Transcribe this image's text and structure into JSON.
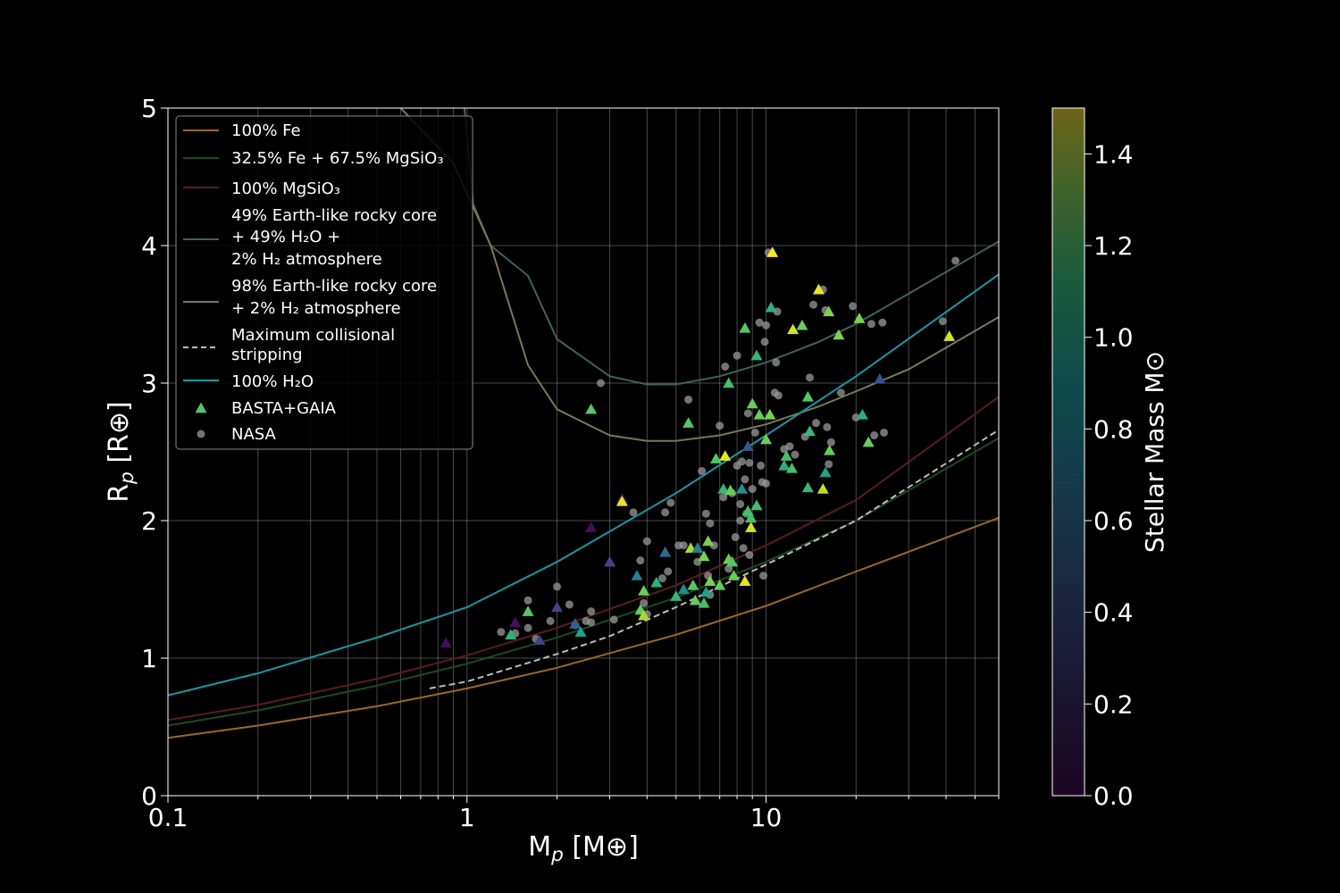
{
  "chart_data": {
    "type": "scatter",
    "xlabel": "M_p [M⊕]",
    "ylabel": "R_p [R⊕]",
    "xscale": "log",
    "xlim": [
      0.1,
      60
    ],
    "ylim": [
      0,
      5
    ],
    "x_ticks": [
      {
        "value": 0.1,
        "label": "0.1"
      },
      {
        "value": 1,
        "label": "1"
      },
      {
        "value": 10,
        "label": "10"
      }
    ],
    "y_ticks": [
      0,
      1,
      2,
      3,
      4,
      5
    ],
    "grid": true,
    "legend_position": "upper-left",
    "colorbar": {
      "label": "Stellar Mass M⊙",
      "range": [
        0.0,
        1.5
      ],
      "ticks": [
        "0.0",
        "0.2",
        "0.4",
        "0.6",
        "0.8",
        "1.0",
        "1.2",
        "1.4"
      ],
      "tick_values": [
        0.0,
        0.2,
        0.4,
        0.6,
        0.8,
        1.0,
        1.2,
        1.4
      ],
      "colormap": "viridis"
    },
    "lines": [
      {
        "name": "100% Fe",
        "color": "#9a6b1f",
        "dash": false,
        "points": [
          [
            0.1,
            0.42
          ],
          [
            0.2,
            0.51
          ],
          [
            0.5,
            0.65
          ],
          [
            1,
            0.78
          ],
          [
            2,
            0.93
          ],
          [
            5,
            1.17
          ],
          [
            10,
            1.38
          ],
          [
            20,
            1.63
          ],
          [
            60,
            2.02
          ]
        ]
      },
      {
        "name": "32.5% Fe + 67.5% MgSiO₃",
        "color": "#1d4a1d",
        "dash": false,
        "points": [
          [
            0.1,
            0.51
          ],
          [
            0.2,
            0.62
          ],
          [
            0.5,
            0.8
          ],
          [
            1,
            0.96
          ],
          [
            2,
            1.15
          ],
          [
            5,
            1.44
          ],
          [
            10,
            1.7
          ],
          [
            20,
            2.0
          ],
          [
            60,
            2.6
          ]
        ]
      },
      {
        "name": "100% MgSiO₃",
        "color": "#5a1c1c",
        "dash": false,
        "points": [
          [
            0.1,
            0.55
          ],
          [
            0.2,
            0.66
          ],
          [
            0.5,
            0.85
          ],
          [
            1,
            1.02
          ],
          [
            2,
            1.22
          ],
          [
            5,
            1.53
          ],
          [
            10,
            1.82
          ],
          [
            20,
            2.15
          ],
          [
            60,
            2.9
          ]
        ]
      },
      {
        "name": "49% Earth-like rocky core + 49% H₂O + 2% H₂ atmosphere",
        "color": "#40625b",
        "dash": false,
        "points": [
          [
            0.98,
            5.0
          ],
          [
            1.05,
            4.3
          ],
          [
            1.2,
            4.0
          ],
          [
            1.6,
            3.78
          ],
          [
            2,
            3.32
          ],
          [
            3,
            3.05
          ],
          [
            4,
            2.99
          ],
          [
            5,
            2.99
          ],
          [
            7,
            3.05
          ],
          [
            10,
            3.15
          ],
          [
            15,
            3.3
          ],
          [
            20,
            3.43
          ],
          [
            30,
            3.65
          ],
          [
            60,
            4.03
          ]
        ]
      },
      {
        "name": "98% Earth-like rocky core + 2% H₂ atmosphere",
        "color": "#78785a",
        "dash": false,
        "points": [
          [
            0.6,
            5.0
          ],
          [
            0.9,
            4.6
          ],
          [
            1.2,
            4.0
          ],
          [
            1.6,
            3.13
          ],
          [
            2,
            2.81
          ],
          [
            3,
            2.62
          ],
          [
            4,
            2.58
          ],
          [
            5,
            2.58
          ],
          [
            7,
            2.62
          ],
          [
            10,
            2.7
          ],
          [
            15,
            2.83
          ],
          [
            20,
            2.94
          ],
          [
            30,
            3.1
          ],
          [
            60,
            3.48
          ]
        ]
      },
      {
        "name": "Maximum collisional stripping",
        "color": "#bbbbbb",
        "dash": true,
        "points": [
          [
            0.75,
            0.78
          ],
          [
            1,
            0.83
          ],
          [
            2,
            1.03
          ],
          [
            3,
            1.16
          ],
          [
            5,
            1.37
          ],
          [
            10,
            1.68
          ],
          [
            20,
            2.0
          ],
          [
            60,
            2.66
          ]
        ]
      },
      {
        "name": "100% H₂O",
        "color": "#139aa6",
        "dash": false,
        "points": [
          [
            0.1,
            0.73
          ],
          [
            0.2,
            0.89
          ],
          [
            0.5,
            1.15
          ],
          [
            1,
            1.37
          ],
          [
            2,
            1.7
          ],
          [
            5,
            2.2
          ],
          [
            10,
            2.62
          ],
          [
            20,
            3.05
          ],
          [
            60,
            3.79
          ]
        ]
      }
    ],
    "legend": [
      {
        "label": "100% Fe",
        "kind": "line"
      },
      {
        "label": "32.5% Fe + 67.5% MgSiO₃",
        "kind": "line"
      },
      {
        "label": "100% MgSiO₃",
        "kind": "line"
      },
      {
        "label": "49% Earth-like rocky core\n+ 49% H₂O +\n 2% H₂ atmosphere",
        "kind": "line"
      },
      {
        "label": "98% Earth-like rocky core\n+ 2% H₂ atmosphere",
        "kind": "line"
      },
      {
        "label": "Maximum collisional\n stripping",
        "kind": "dashed"
      },
      {
        "label": "100% H₂O",
        "kind": "line"
      },
      {
        "label": "BASTA+GAIA",
        "kind": "triangle"
      },
      {
        "label": "NASA",
        "kind": "circle"
      }
    ],
    "series": [
      {
        "name": "BASTA+GAIA",
        "marker": "triangle",
        "points": [
          [
            0.85,
            1.11,
            0.05
          ],
          [
            1.4,
            1.17,
            0.95
          ],
          [
            1.45,
            1.26,
            0.05
          ],
          [
            1.6,
            1.34,
            1.1
          ],
          [
            1.75,
            1.13,
            0.3
          ],
          [
            2.0,
            1.37,
            0.3
          ],
          [
            2.3,
            1.25,
            0.45
          ],
          [
            2.4,
            1.19,
            0.85
          ],
          [
            2.6,
            1.95,
            0.05
          ],
          [
            2.6,
            2.81,
            1.1
          ],
          [
            3.0,
            1.7,
            0.3
          ],
          [
            3.3,
            2.16,
            0.05
          ],
          [
            3.3,
            2.14,
            1.45
          ],
          [
            3.7,
            1.6,
            0.65
          ],
          [
            3.8,
            1.35,
            1.15
          ],
          [
            3.9,
            1.49,
            1.15
          ],
          [
            3.9,
            1.31,
            1.3
          ],
          [
            4.3,
            1.55,
            0.95
          ],
          [
            4.6,
            1.77,
            0.5
          ],
          [
            5.0,
            1.45,
            1.0
          ],
          [
            5.3,
            1.5,
            0.7
          ],
          [
            5.5,
            2.71,
            1.1
          ],
          [
            5.6,
            1.8,
            1.3
          ],
          [
            5.7,
            1.53,
            1.1
          ],
          [
            5.8,
            1.42,
            1.15
          ],
          [
            5.9,
            1.8,
            0.65
          ],
          [
            6.2,
            1.74,
            1.2
          ],
          [
            6.2,
            1.4,
            1.05
          ],
          [
            6.3,
            1.48,
            0.85
          ],
          [
            6.4,
            1.85,
            1.2
          ],
          [
            6.5,
            1.56,
            1.2
          ],
          [
            6.8,
            2.45,
            1.1
          ],
          [
            7.0,
            1.53,
            1.15
          ],
          [
            7.2,
            2.23,
            1.0
          ],
          [
            7.3,
            2.47,
            1.45
          ],
          [
            7.5,
            3.0,
            1.05
          ],
          [
            7.5,
            1.72,
            1.15
          ],
          [
            7.6,
            2.22,
            1.15
          ],
          [
            7.7,
            1.7,
            1.1
          ],
          [
            7.8,
            1.6,
            1.15
          ],
          [
            8.3,
            2.23,
            0.75
          ],
          [
            8.5,
            1.56,
            1.45
          ],
          [
            8.5,
            3.4,
            1.1
          ],
          [
            8.7,
            2.54,
            0.4
          ],
          [
            8.7,
            2.07,
            1.05
          ],
          [
            8.9,
            1.95,
            1.4
          ],
          [
            8.9,
            2.02,
            1.05
          ],
          [
            9.0,
            2.85,
            1.15
          ],
          [
            9.3,
            2.11,
            1.05
          ],
          [
            9.3,
            3.2,
            1.0
          ],
          [
            9.5,
            2.77,
            1.15
          ],
          [
            10.0,
            2.59,
            1.15
          ],
          [
            10.3,
            2.77,
            1.2
          ],
          [
            10.4,
            3.55,
            0.95
          ],
          [
            10.5,
            3.95,
            1.5
          ],
          [
            11.5,
            2.4,
            0.95
          ],
          [
            11.7,
            2.47,
            1.05
          ],
          [
            12.2,
            2.38,
            1.05
          ],
          [
            12.3,
            3.39,
            1.4
          ],
          [
            13.2,
            3.42,
            1.15
          ],
          [
            13.8,
            2.24,
            1.0
          ],
          [
            13.8,
            2.9,
            1.1
          ],
          [
            14.0,
            2.65,
            1.0
          ],
          [
            15.0,
            3.68,
            1.45
          ],
          [
            15.5,
            2.23,
            1.35
          ],
          [
            15.8,
            2.35,
            0.85
          ],
          [
            16.2,
            3.52,
            1.2
          ],
          [
            16.3,
            2.51,
            1.15
          ],
          [
            17.5,
            3.35,
            1.2
          ],
          [
            20.5,
            3.47,
            1.2
          ],
          [
            21.0,
            2.77,
            0.95
          ],
          [
            22.0,
            2.57,
            1.15
          ],
          [
            24.0,
            3.03,
            0.35
          ],
          [
            41.0,
            3.34,
            1.4
          ]
        ]
      },
      {
        "name": "NASA",
        "marker": "circle",
        "points": [
          [
            1.3,
            1.19
          ],
          [
            1.45,
            1.18
          ],
          [
            1.6,
            1.42
          ],
          [
            1.6,
            1.22
          ],
          [
            1.7,
            1.14
          ],
          [
            1.9,
            1.27
          ],
          [
            2.0,
            1.52
          ],
          [
            2.2,
            1.39
          ],
          [
            2.3,
            1.24
          ],
          [
            2.5,
            1.27
          ],
          [
            2.6,
            1.34
          ],
          [
            2.6,
            1.26
          ],
          [
            2.8,
            3.0
          ],
          [
            3.1,
            1.28
          ],
          [
            3.6,
            2.06
          ],
          [
            3.8,
            1.71
          ],
          [
            3.9,
            1.4
          ],
          [
            4.0,
            1.85
          ],
          [
            4.0,
            1.32
          ],
          [
            4.5,
            1.58
          ],
          [
            4.6,
            2.06
          ],
          [
            4.7,
            1.63
          ],
          [
            4.8,
            2.13
          ],
          [
            5.1,
            1.82
          ],
          [
            5.3,
            1.82
          ],
          [
            5.5,
            2.88
          ],
          [
            5.9,
            1.7
          ],
          [
            6.1,
            2.36
          ],
          [
            6.3,
            2.05
          ],
          [
            6.4,
            1.6
          ],
          [
            6.5,
            1.98
          ],
          [
            6.5,
            1.46
          ],
          [
            6.7,
            1.82
          ],
          [
            7.0,
            2.69
          ],
          [
            7.2,
            2.17
          ],
          [
            7.3,
            3.12
          ],
          [
            7.5,
            1.65
          ],
          [
            7.7,
            2.2
          ],
          [
            7.9,
            1.88
          ],
          [
            8.0,
            3.2
          ],
          [
            8.0,
            2.4
          ],
          [
            8.2,
            2.0
          ],
          [
            8.2,
            2.12
          ],
          [
            8.3,
            2.43
          ],
          [
            8.4,
            1.8
          ],
          [
            8.5,
            2.3
          ],
          [
            8.6,
            2.05
          ],
          [
            8.7,
            2.78
          ],
          [
            8.8,
            2.42
          ],
          [
            8.8,
            1.75
          ],
          [
            9.0,
            2.23
          ],
          [
            9.2,
            2.64
          ],
          [
            9.5,
            3.44
          ],
          [
            9.6,
            2.4
          ],
          [
            9.7,
            2.28
          ],
          [
            9.9,
            3.3
          ],
          [
            10.0,
            2.27
          ],
          [
            10.0,
            3.42
          ],
          [
            10.7,
            2.93
          ],
          [
            10.8,
            3.15
          ],
          [
            10.9,
            3.52
          ],
          [
            11.0,
            2.91
          ],
          [
            11.5,
            2.52
          ],
          [
            12.0,
            2.54
          ],
          [
            12.5,
            2.48
          ],
          [
            13.5,
            2.61
          ],
          [
            14.0,
            3.04
          ],
          [
            14.4,
            3.57
          ],
          [
            14.7,
            2.71
          ],
          [
            15.5,
            3.68
          ],
          [
            15.8,
            3.53
          ],
          [
            16.0,
            2.68
          ],
          [
            16.2,
            2.41
          ],
          [
            16.5,
            2.57
          ],
          [
            17.8,
            2.93
          ],
          [
            19.5,
            3.56
          ],
          [
            20.0,
            2.75
          ],
          [
            22.5,
            3.43
          ],
          [
            23.0,
            2.62
          ],
          [
            24.5,
            3.44
          ],
          [
            24.8,
            2.64
          ],
          [
            39.0,
            3.45
          ],
          [
            43.0,
            3.89
          ],
          [
            9.8,
            1.6
          ],
          [
            10.2,
            3.95
          ]
        ]
      }
    ]
  }
}
